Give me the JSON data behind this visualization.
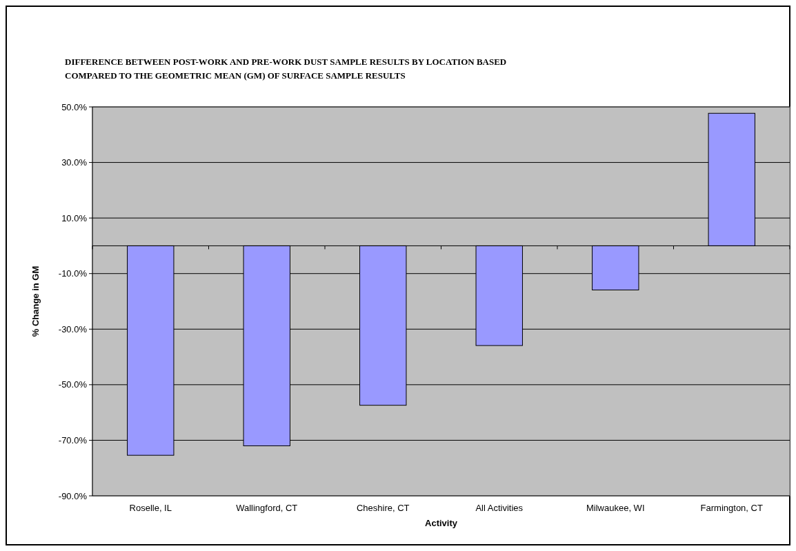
{
  "chart_data": {
    "type": "bar",
    "title": "DIFFERENCE BETWEEN POST-WORK AND PRE-WORK DUST SAMPLE RESULTS BY LOCATION BASED COMPARED TO THE GEOMETRIC MEAN (GM) OF SURFACE SAMPLE RESULTS",
    "xlabel": "Activity",
    "ylabel": "% Change in GM",
    "categories": [
      "Roselle, IL",
      "Wallingford, CT",
      "Cheshire, CT",
      "All Activities",
      "Milwaukee, WI",
      "Farmington, CT"
    ],
    "values": [
      -75.4,
      -72.0,
      -57.4,
      -35.9,
      -15.9,
      47.7
    ],
    "color": "#9999ff",
    "ylim": [
      -90,
      50
    ],
    "yticks": [
      {
        "value": -90,
        "label": "-90.0%"
      },
      {
        "value": -70,
        "label": "-70.0%"
      },
      {
        "value": -50,
        "label": "-50.0%"
      },
      {
        "value": -30,
        "label": "-30.0%"
      },
      {
        "value": -10,
        "label": "-10.0%"
      },
      {
        "value": 10,
        "label": "10.0%"
      },
      {
        "value": 30,
        "label": "30.0%"
      },
      {
        "value": 50,
        "label": "50.0%"
      }
    ],
    "grid": "y"
  }
}
